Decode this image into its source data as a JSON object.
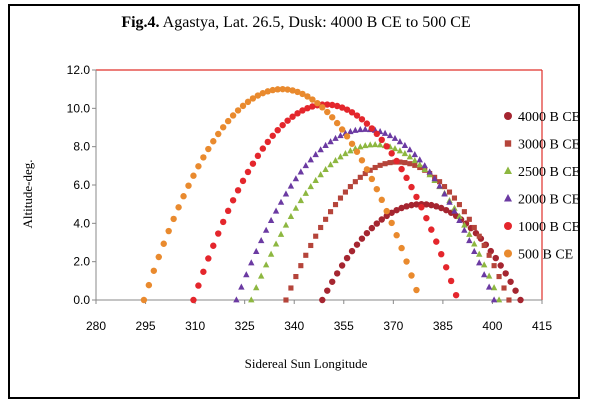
{
  "title": {
    "bold": "Fig.4.",
    "rest": " Agastya, Lat. 26.5, Dusk: 4000 B CE to 500 CE"
  },
  "chart_data": {
    "type": "scatter",
    "xlabel": "Sidereal Sun Longitude",
    "ylabel": "Altitude-deg.",
    "xlim": [
      280,
      415
    ],
    "ylim": [
      0,
      12
    ],
    "xticks": [
      280,
      295,
      310,
      325,
      340,
      355,
      370,
      385,
      400,
      415
    ],
    "yticks": [
      "0.0",
      "2.0",
      "4.0",
      "6.0",
      "8.0",
      "10.0",
      "12.0"
    ],
    "legend_position": "right",
    "series": [
      {
        "name": "4000 B CE",
        "marker": "circle",
        "color": "#a52530",
        "x_start": 348.5,
        "x_end": 408.5,
        "peak": 5.0
      },
      {
        "name": "3000 B CE",
        "marker": "square",
        "color": "#b5443a",
        "x_start": 337.5,
        "x_end": 405.0,
        "peak": 7.2
      },
      {
        "name": "2500 B CE",
        "marker": "triangle",
        "color": "#8db740",
        "x_start": 327.0,
        "x_end": 402.0,
        "peak": 8.1
      },
      {
        "name": "2000 B CE",
        "marker": "triangle",
        "color": "#6b3aa2",
        "x_start": 322.5,
        "x_end": 400.5,
        "peak": 8.9
      },
      {
        "name": "1000 B CE",
        "marker": "circle",
        "color": "#e4262c",
        "x_start": 309.5,
        "x_end": 389.5,
        "peak": 10.2
      },
      {
        "name": "500 B CE",
        "marker": "circle",
        "color": "#e98a2e",
        "x_start": 294.5,
        "x_end": 378.0,
        "peak": 11.0
      }
    ]
  }
}
